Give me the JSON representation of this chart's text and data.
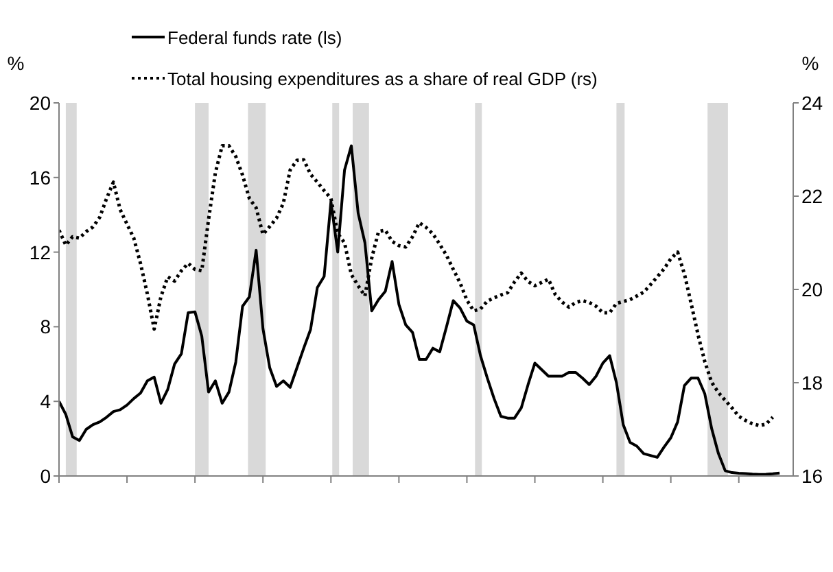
{
  "chart_data": {
    "type": "line",
    "ylabel": "%",
    "y2label": "%",
    "legend": "top left",
    "grid": false,
    "categories": [
      null,
      null,
      null,
      null,
      null,
      null,
      null,
      null,
      null,
      null,
      null,
      null,
      null,
      null,
      null,
      null,
      null,
      null,
      null,
      null,
      null,
      null,
      null,
      null,
      null,
      null,
      null,
      null,
      null,
      null,
      null,
      null,
      null,
      null,
      null,
      null,
      null,
      null,
      null,
      null,
      null,
      null,
      null,
      null,
      null,
      null,
      null,
      null,
      null,
      null,
      null,
      null,
      null,
      null,
      null,
      null,
      null,
      null,
      null,
      null,
      null,
      null,
      null,
      null,
      null,
      null,
      null,
      null,
      null,
      null,
      null,
      null,
      null,
      null,
      null,
      null,
      null,
      null,
      null,
      null,
      null,
      null,
      null,
      null,
      null,
      null,
      null,
      null,
      null,
      null,
      null,
      null,
      null,
      null,
      null,
      null,
      null,
      null,
      null,
      null,
      null,
      null,
      null,
      null,
      null,
      null,
      null
    ],
    "ylim": [
      0,
      20
    ],
    "yticks": [
      0,
      4,
      8,
      12,
      16,
      20
    ],
    "y2lim": [
      16,
      24
    ],
    "y2ticks": [
      16,
      18,
      20,
      22,
      24
    ],
    "series": [
      {
        "name": "Federal funds rate (ls)",
        "color": "#000000",
        "line_style": "solid",
        "values": [
          4.0,
          3.3,
          2.1,
          1.9,
          2.5,
          2.75,
          2.9,
          3.15,
          3.45,
          3.55,
          3.8,
          4.15,
          4.45,
          5.1,
          5.3,
          3.9,
          4.65,
          6.0,
          6.55,
          8.75,
          8.8,
          7.5,
          4.5,
          5.1,
          3.9,
          4.5,
          6.1,
          9.1,
          9.6,
          12.1,
          7.9,
          5.8,
          4.8,
          5.1,
          4.75,
          5.8,
          6.85,
          7.85,
          10.1,
          10.7,
          14.7,
          12.0,
          16.4,
          17.7,
          14.1,
          12.5,
          8.85,
          9.45,
          9.9,
          11.5,
          9.2,
          8.1,
          7.7,
          6.25,
          6.25,
          6.85,
          6.65,
          8.0,
          9.4,
          9.0,
          8.3,
          8.1,
          6.45,
          5.25,
          4.15,
          3.2,
          3.1,
          3.1,
          3.65,
          4.9,
          6.05,
          5.7,
          5.35,
          5.35,
          5.35,
          5.55,
          5.55,
          5.25,
          4.9,
          5.35,
          6.05,
          6.45,
          5.0,
          2.75,
          1.8,
          1.6,
          1.2,
          1.1,
          1.0,
          1.55,
          2.05,
          2.9,
          4.85,
          5.25,
          5.25,
          4.4,
          2.55,
          1.2,
          0.28,
          0.18,
          0.15,
          0.13,
          0.1,
          0.08,
          0.09,
          0.12,
          0.16
        ]
      },
      {
        "name": "Total housing expenditures as a share of real GDP (rs)",
        "color": "#000000",
        "line_style": "dotted",
        "axis": "y2",
        "values": [
          21.27,
          20.95,
          21.13,
          21.1,
          21.24,
          21.34,
          21.55,
          21.95,
          22.3,
          21.71,
          21.4,
          21.1,
          20.55,
          19.9,
          19.15,
          19.85,
          20.27,
          20.18,
          20.4,
          20.56,
          20.43,
          20.4,
          21.5,
          22.5,
          23.08,
          23.08,
          22.85,
          22.45,
          21.95,
          21.75,
          21.18,
          21.35,
          21.53,
          21.85,
          22.56,
          22.77,
          22.78,
          22.47,
          22.3,
          22.12,
          21.95,
          21.2,
          21.0,
          20.32,
          20.08,
          19.86,
          20.67,
          21.24,
          21.27,
          21.03,
          20.94,
          20.91,
          21.13,
          21.43,
          21.33,
          21.19,
          20.97,
          20.73,
          20.43,
          20.14,
          19.77,
          19.54,
          19.58,
          19.75,
          19.82,
          19.88,
          19.93,
          20.16,
          20.35,
          20.17,
          20.08,
          20.15,
          20.22,
          19.89,
          19.73,
          19.62,
          19.72,
          19.76,
          19.72,
          19.64,
          19.5,
          19.5,
          19.7,
          19.74,
          19.78,
          19.86,
          19.94,
          20.1,
          20.27,
          20.44,
          20.66,
          20.8,
          20.33,
          19.69,
          19.03,
          18.45,
          18.01,
          17.79,
          17.62,
          17.46,
          17.28,
          17.19,
          17.12,
          17.08,
          17.11,
          17.26,
          null
        ]
      }
    ]
  }
}
